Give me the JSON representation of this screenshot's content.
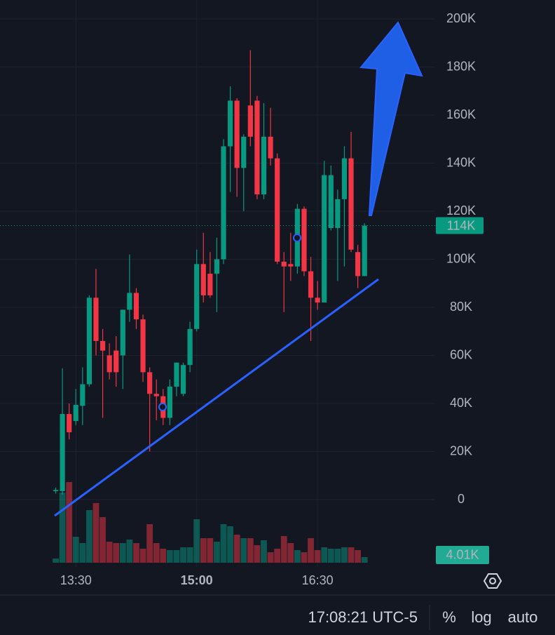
{
  "chart_data": {
    "type": "candlestick",
    "categories": [
      "13:15",
      "13:20",
      "13:25",
      "13:30",
      "13:35",
      "13:40",
      "13:45",
      "13:50",
      "13:55",
      "14:00",
      "14:05",
      "14:10",
      "14:15",
      "14:20",
      "14:25",
      "14:30",
      "14:35",
      "14:40",
      "14:45",
      "14:50",
      "14:55",
      "15:00",
      "15:05",
      "15:10",
      "15:15",
      "15:20",
      "15:25",
      "15:30",
      "15:35",
      "15:40",
      "15:45",
      "15:50",
      "15:55",
      "16:00",
      "16:05",
      "16:10",
      "16:15",
      "16:20",
      "16:25",
      "16:30",
      "16:35",
      "16:40",
      "16:45",
      "16:50",
      "16:55",
      "17:00",
      "17:05"
    ],
    "open": [
      3500,
      3500,
      35600,
      32700,
      39000,
      48000,
      84000,
      66000,
      60000,
      62000,
      60000,
      79000,
      86000,
      75000,
      53000,
      44000,
      43000,
      34000,
      47000,
      44000,
      56000,
      71000,
      98000,
      94000,
      94000,
      100000,
      147000,
      166000,
      138000,
      164000,
      166000,
      127000,
      151000,
      142000,
      99000,
      98000,
      97000,
      121000,
      95000,
      84000,
      82000,
      113000,
      113000,
      125000,
      142000,
      103000,
      93000
    ],
    "high": [
      5000,
      54600,
      40000,
      46000,
      55000,
      85000,
      96000,
      71000,
      65000,
      68000,
      79000,
      102000,
      88000,
      77000,
      55000,
      50000,
      46000,
      50000,
      57000,
      57000,
      74000,
      104000,
      111000,
      103000,
      109000,
      150000,
      172000,
      167000,
      152000,
      187000,
      168000,
      165000,
      163000,
      144000,
      103000,
      111000,
      123000,
      122000,
      101000,
      91000,
      141000,
      139000,
      129000,
      147000,
      153000,
      106000,
      115000
    ],
    "low": [
      2500,
      2000,
      25000,
      31000,
      31000,
      47000,
      60000,
      34000,
      50000,
      47000,
      46000,
      74000,
      71000,
      49000,
      20000,
      33000,
      31000,
      31000,
      43000,
      43000,
      53000,
      70000,
      82000,
      84000,
      78000,
      98000,
      128000,
      126000,
      120000,
      147000,
      125000,
      125000,
      139000,
      98000,
      78000,
      91000,
      94000,
      93000,
      66000,
      79000,
      82000,
      112000,
      91000,
      97000,
      103000,
      88000,
      93000
    ],
    "close": [
      4000,
      35600,
      28000,
      39400,
      48000,
      84000,
      66000,
      62000,
      53000,
      53000,
      79000,
      86000,
      75000,
      53000,
      44000,
      43000,
      34000,
      47000,
      57000,
      56000,
      71000,
      98000,
      85000,
      85000,
      100000,
      147000,
      166000,
      138000,
      151000,
      151000,
      127000,
      151000,
      142000,
      99000,
      97000,
      97000,
      121000,
      95000,
      84000,
      82000,
      135000,
      135000,
      125000,
      142000,
      104000,
      93000,
      114000
    ],
    "volume": [
      3000,
      50000,
      57500,
      18500,
      14000,
      37500,
      42500,
      32500,
      15000,
      14000,
      14000,
      16500,
      14000,
      10000,
      27500,
      14000,
      10000,
      9000,
      9000,
      11000,
      11000,
      31000,
      17500,
      17500,
      15000,
      27500,
      26000,
      20000,
      17500,
      17500,
      12500,
      16000,
      7500,
      10000,
      19000,
      14000,
      9000,
      7500,
      17500,
      9000,
      11000,
      10000,
      10000,
      11000,
      11000,
      9000,
      4010
    ],
    "up_color": "#089981",
    "down_color": "#f23645",
    "ylim": [
      -20000,
      200000
    ],
    "yticks": [
      0,
      {
        "value": 20000,
        "label": "20K"
      },
      {
        "value": 40000,
        "label": "40K"
      },
      {
        "value": 60000,
        "label": "60K"
      },
      {
        "value": 80000,
        "label": "80K"
      },
      {
        "value": 100000,
        "label": "100K"
      },
      {
        "value": 120000,
        "label": "120K"
      },
      {
        "value": 140000,
        "label": "140K"
      },
      {
        "value": 160000,
        "label": "160K"
      },
      {
        "value": 180000,
        "label": "180K"
      },
      {
        "value": 200000,
        "label": "200K"
      }
    ],
    "xticks": [
      "13:30",
      "15:00",
      "16:30"
    ],
    "grid": true,
    "last_price_label": "114K",
    "last_volume_label": "4.01K"
  },
  "footer": {
    "time": "17:08:21 UTC-5",
    "buttons": [
      "%",
      "log",
      "auto"
    ]
  }
}
